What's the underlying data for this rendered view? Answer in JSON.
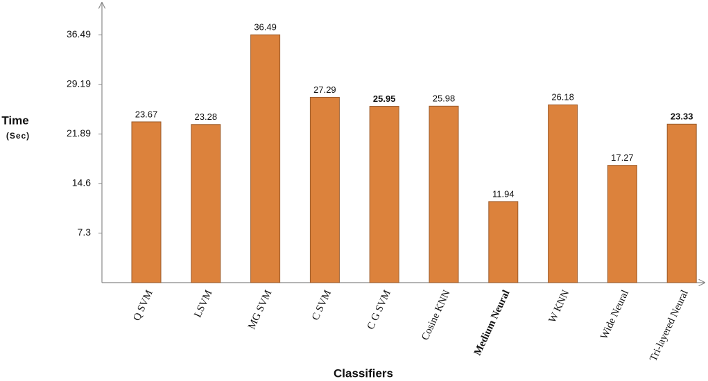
{
  "chart_data": {
    "type": "bar",
    "y_label": "Time",
    "y_label_unit": "(Sec)",
    "x_label": "Classifiers",
    "categories": [
      "Q SVM",
      "LSVM",
      "MG SVM",
      "C SVM",
      "C G SVM",
      "Cosine KNN",
      "Medium Neural",
      "W KNN",
      "Wide Neural",
      "Tri-layered Neural"
    ],
    "values": [
      23.67,
      23.28,
      36.49,
      27.29,
      25.95,
      25.98,
      11.94,
      26.18,
      17.27,
      23.33
    ],
    "color": "#dc823c",
    "ylim": [
      0,
      41
    ],
    "yticks": [
      7.3,
      14.6,
      21.89,
      29.19,
      36.49
    ],
    "grid": false
  }
}
